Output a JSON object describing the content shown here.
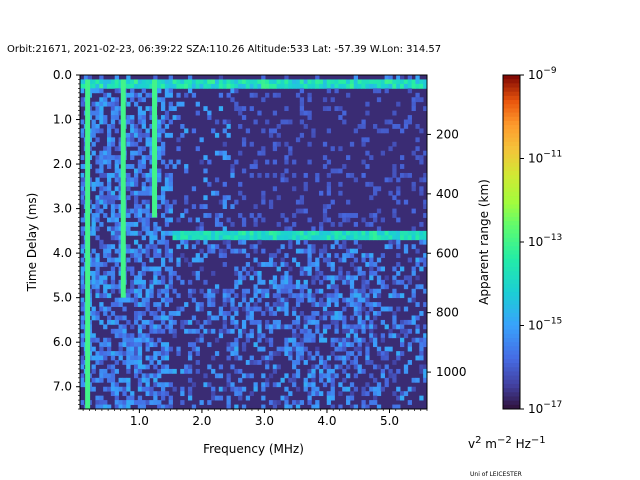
{
  "chart_data": {
    "type": "heatmap",
    "title": "Orbit:21671, 2021-02-23, 06:39:22 SZA:110.26 Altitude:533 Lat: -57.39 W.Lon: 314.57",
    "xlabel": "Frequency (MHz)",
    "ylabel": "Time Delay (ms)",
    "y2label": "Apparent range (km)",
    "xlim": [
      0.05,
      5.6
    ],
    "ylim": [
      7.5,
      0.0
    ],
    "xticks": [
      1.0,
      2.0,
      3.0,
      4.0,
      5.0
    ],
    "xtick_labels": [
      "1.0",
      "2.0",
      "3.0",
      "4.0",
      "5.0"
    ],
    "yticks": [
      0.0,
      1.0,
      2.0,
      3.0,
      4.0,
      5.0,
      6.0,
      7.0
    ],
    "ytick_labels": [
      "0.0",
      "1.0",
      "2.0",
      "3.0",
      "4.0",
      "5.0",
      "6.0",
      "7.0"
    ],
    "y2ticks_km": [
      200,
      400,
      600,
      800,
      1000
    ],
    "y2tick_labels": [
      "200",
      "400",
      "600",
      "800",
      "1000"
    ],
    "colorbar": {
      "scale": "log",
      "min_exp": -17,
      "max_exp": -9,
      "tick_exps": [
        -17,
        -15,
        -13,
        -11,
        -9
      ],
      "tick_labels": [
        "10",
        "10",
        "10",
        "10",
        "10"
      ],
      "tick_sups": [
        "−17",
        "−15",
        "−13",
        "−11",
        "−9"
      ],
      "colormap": "turbo",
      "units": "v² m⁻² Hz⁻¹"
    },
    "features": {
      "background_log_intensity": -16.3,
      "surface_echo_band_ms": [
        0.1,
        0.3
      ],
      "surface_echo_log_intensity": -14.0,
      "horizontal_echo_delay_ms": 3.6,
      "horizontal_echo_freq_range_mhz": [
        1.5,
        5.6
      ],
      "horizontal_echo_log_intensity": -13.8,
      "vertical_streaks_mhz": [
        0.18,
        0.75,
        1.25
      ],
      "vertical_streak_log_intensity": -13.0,
      "empty_upper_right_region": {
        "freq_mhz": [
          2.5,
          5.6
        ],
        "delay_ms": [
          0.3,
          3.5
        ]
      }
    }
  },
  "units_label": {
    "text": "v",
    "sup1": "2",
    "mid": " m",
    "sup2": "−2",
    "end": " Hz",
    "sup3": "−1"
  },
  "credit": "Uni of LEICESTER"
}
